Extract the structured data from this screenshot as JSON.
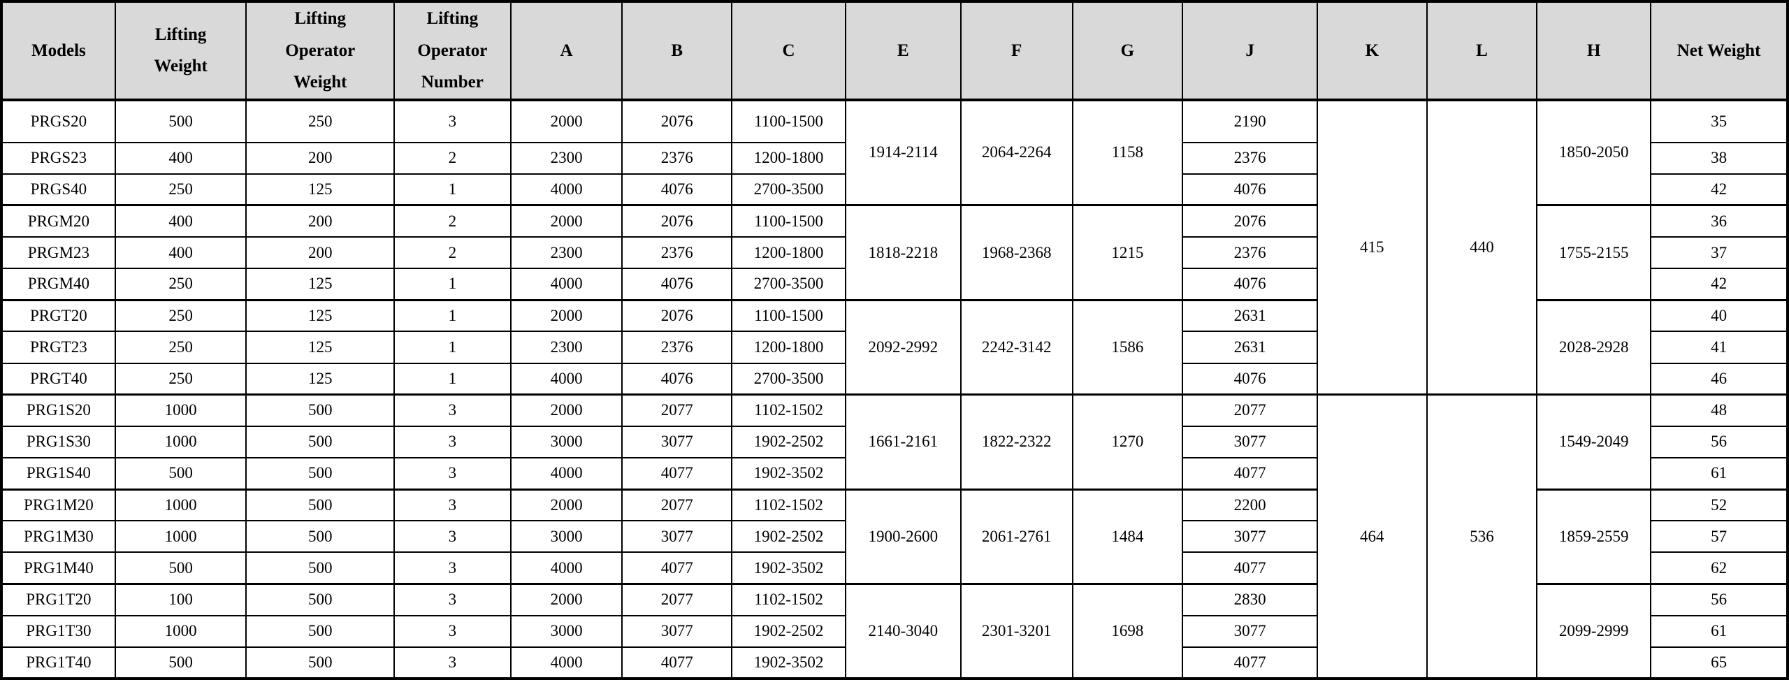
{
  "colors": {
    "header_bg": "#d9d9d9",
    "cell_bg": "#ffffff",
    "border": "#000000",
    "text": "#000000"
  },
  "table": {
    "columns": [
      {
        "key": "model",
        "label": "Models"
      },
      {
        "key": "lifting_weight",
        "label": "Lifting\nWeight"
      },
      {
        "key": "lifting_operator_weight",
        "label": "Lifting\nOperator\nWeight"
      },
      {
        "key": "lifting_operator_number",
        "label": "Lifting\nOperator\nNumber"
      },
      {
        "key": "a",
        "label": "A"
      },
      {
        "key": "b",
        "label": "B"
      },
      {
        "key": "c",
        "label": "C"
      },
      {
        "key": "e",
        "label": "E"
      },
      {
        "key": "f",
        "label": "F"
      },
      {
        "key": "g",
        "label": "G"
      },
      {
        "key": "j",
        "label": "J"
      },
      {
        "key": "k",
        "label": "K"
      },
      {
        "key": "l",
        "label": "L"
      },
      {
        "key": "h",
        "label": "H"
      },
      {
        "key": "net_weight",
        "label": "Net Weight"
      }
    ],
    "kl_blocks": [
      {
        "k": "415",
        "l": "440"
      },
      {
        "k": "464",
        "l": "536"
      }
    ],
    "groups": [
      {
        "e": "1914-2114",
        "f": "2064-2264",
        "g": "1158",
        "h": "1850-2050",
        "rows": [
          {
            "model": "PRGS20",
            "lifting_weight": "500",
            "lifting_operator_weight": "250",
            "lifting_operator_number": "3",
            "a": "2000",
            "b": "2076",
            "c": "1100-1500",
            "j": "2190",
            "net_weight": "35"
          },
          {
            "model": "PRGS23",
            "lifting_weight": "400",
            "lifting_operator_weight": "200",
            "lifting_operator_number": "2",
            "a": "2300",
            "b": "2376",
            "c": "1200-1800",
            "j": "2376",
            "net_weight": "38"
          },
          {
            "model": "PRGS40",
            "lifting_weight": "250",
            "lifting_operator_weight": "125",
            "lifting_operator_number": "1",
            "a": "4000",
            "b": "4076",
            "c": "2700-3500",
            "j": "4076",
            "net_weight": "42"
          }
        ]
      },
      {
        "e": "1818-2218",
        "f": "1968-2368",
        "g": "1215",
        "h": "1755-2155",
        "rows": [
          {
            "model": "PRGM20",
            "lifting_weight": "400",
            "lifting_operator_weight": "200",
            "lifting_operator_number": "2",
            "a": "2000",
            "b": "2076",
            "c": "1100-1500",
            "j": "2076",
            "net_weight": "36"
          },
          {
            "model": "PRGM23",
            "lifting_weight": "400",
            "lifting_operator_weight": "200",
            "lifting_operator_number": "2",
            "a": "2300",
            "b": "2376",
            "c": "1200-1800",
            "j": "2376",
            "net_weight": "37"
          },
          {
            "model": "PRGM40",
            "lifting_weight": "250",
            "lifting_operator_weight": "125",
            "lifting_operator_number": "1",
            "a": "4000",
            "b": "4076",
            "c": "2700-3500",
            "j": "4076",
            "net_weight": "42"
          }
        ]
      },
      {
        "e": "2092-2992",
        "f": "2242-3142",
        "g": "1586",
        "h": "2028-2928",
        "rows": [
          {
            "model": "PRGT20",
            "lifting_weight": "250",
            "lifting_operator_weight": "125",
            "lifting_operator_number": "1",
            "a": "2000",
            "b": "2076",
            "c": "1100-1500",
            "j": "2631",
            "net_weight": "40"
          },
          {
            "model": "PRGT23",
            "lifting_weight": "250",
            "lifting_operator_weight": "125",
            "lifting_operator_number": "1",
            "a": "2300",
            "b": "2376",
            "c": "1200-1800",
            "j": "2631",
            "net_weight": "41"
          },
          {
            "model": "PRGT40",
            "lifting_weight": "250",
            "lifting_operator_weight": "125",
            "lifting_operator_number": "1",
            "a": "4000",
            "b": "4076",
            "c": "2700-3500",
            "j": "4076",
            "net_weight": "46"
          }
        ]
      },
      {
        "e": "1661-2161",
        "f": "1822-2322",
        "g": "1270",
        "h": "1549-2049",
        "rows": [
          {
            "model": "PRG1S20",
            "lifting_weight": "1000",
            "lifting_operator_weight": "500",
            "lifting_operator_number": "3",
            "a": "2000",
            "b": "2077",
            "c": "1102-1502",
            "j": "2077",
            "net_weight": "48"
          },
          {
            "model": "PRG1S30",
            "lifting_weight": "1000",
            "lifting_operator_weight": "500",
            "lifting_operator_number": "3",
            "a": "3000",
            "b": "3077",
            "c": "1902-2502",
            "j": "3077",
            "net_weight": "56"
          },
          {
            "model": "PRG1S40",
            "lifting_weight": "500",
            "lifting_operator_weight": "500",
            "lifting_operator_number": "3",
            "a": "4000",
            "b": "4077",
            "c": "1902-3502",
            "j": "4077",
            "net_weight": "61"
          }
        ]
      },
      {
        "e": "1900-2600",
        "f": "2061-2761",
        "g": "1484",
        "h": "1859-2559",
        "rows": [
          {
            "model": "PRG1M20",
            "lifting_weight": "1000",
            "lifting_operator_weight": "500",
            "lifting_operator_number": "3",
            "a": "2000",
            "b": "2077",
            "c": "1102-1502",
            "j": "2200",
            "net_weight": "52"
          },
          {
            "model": "PRG1M30",
            "lifting_weight": "1000",
            "lifting_operator_weight": "500",
            "lifting_operator_number": "3",
            "a": "3000",
            "b": "3077",
            "c": "1902-2502",
            "j": "3077",
            "net_weight": "57"
          },
          {
            "model": "PRG1M40",
            "lifting_weight": "500",
            "lifting_operator_weight": "500",
            "lifting_operator_number": "3",
            "a": "4000",
            "b": "4077",
            "c": "1902-3502",
            "j": "4077",
            "net_weight": "62"
          }
        ]
      },
      {
        "e": "2140-3040",
        "f": "2301-3201",
        "g": "1698",
        "h": "2099-2999",
        "rows": [
          {
            "model": "PRG1T20",
            "lifting_weight": "100",
            "lifting_operator_weight": "500",
            "lifting_operator_number": "3",
            "a": "2000",
            "b": "2077",
            "c": "1102-1502",
            "j": "2830",
            "net_weight": "56"
          },
          {
            "model": "PRG1T30",
            "lifting_weight": "1000",
            "lifting_operator_weight": "500",
            "lifting_operator_number": "3",
            "a": "3000",
            "b": "3077",
            "c": "1902-2502",
            "j": "3077",
            "net_weight": "61"
          },
          {
            "model": "PRG1T40",
            "lifting_weight": "500",
            "lifting_operator_weight": "500",
            "lifting_operator_number": "3",
            "a": "4000",
            "b": "4077",
            "c": "1902-3502",
            "j": "4077",
            "net_weight": "65"
          }
        ]
      }
    ]
  }
}
